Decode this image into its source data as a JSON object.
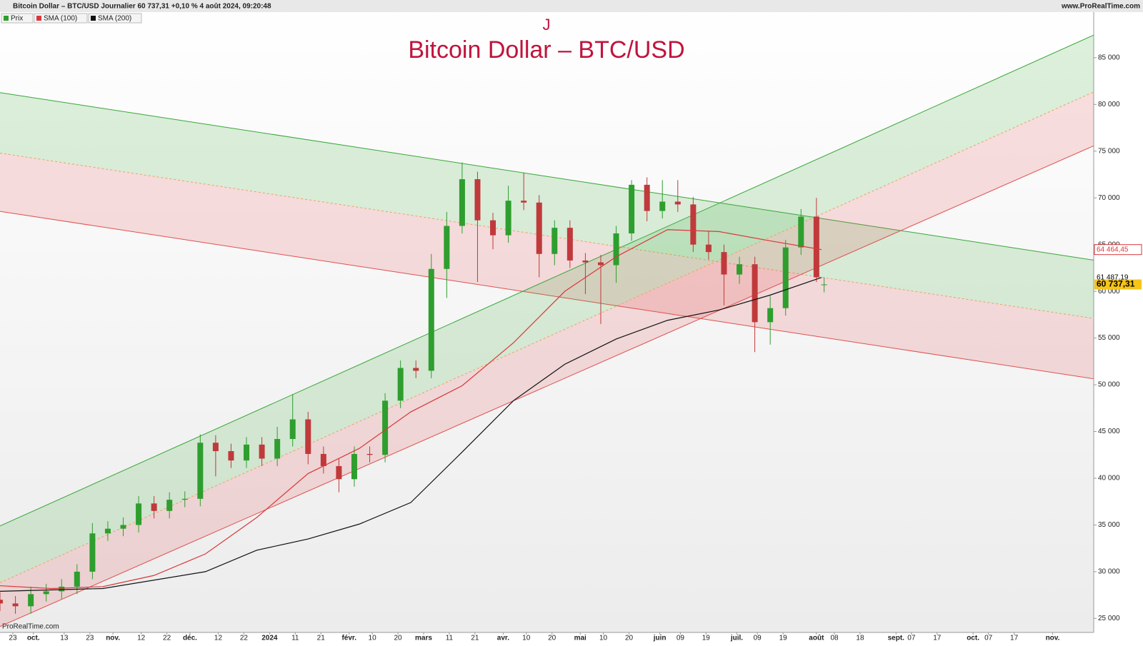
{
  "header": {
    "text": "Bitcoin Dollar – BTC/USD Journalier 60 737,31 +0,10 % 4 août 2024, 09:20:48",
    "site": "www.ProRealTime.com"
  },
  "footer": "ProRealTime.com",
  "chart_data": {
    "type": "candlestick",
    "supertitle": "J",
    "title": "Bitcoin Dollar – BTC/USD",
    "xlim": [
      0,
      426
    ],
    "ylim": [
      23500,
      89800
    ],
    "yticks": [
      {
        "value": 25000,
        "label": "25 000"
      },
      {
        "value": 30000,
        "label": "30 000"
      },
      {
        "value": 35000,
        "label": "35 000"
      },
      {
        "value": 40000,
        "label": "40 000"
      },
      {
        "value": 45000,
        "label": "45 000"
      },
      {
        "value": 50000,
        "label": "50 000"
      },
      {
        "value": 55000,
        "label": "55 000"
      },
      {
        "value": 60000,
        "label": "60 000"
      },
      {
        "value": 65000,
        "label": "65 000"
      },
      {
        "value": 70000,
        "label": "70 000"
      },
      {
        "value": 75000,
        "label": "75 000"
      },
      {
        "value": 80000,
        "label": "80 000"
      },
      {
        "value": 85000,
        "label": "85 000"
      }
    ],
    "xticks": [
      {
        "value": 5,
        "label": "23"
      },
      {
        "value": 13,
        "label": "oct."
      },
      {
        "value": 25,
        "label": "13"
      },
      {
        "value": 35,
        "label": "23"
      },
      {
        "value": 44,
        "label": "nov."
      },
      {
        "value": 55,
        "label": "12"
      },
      {
        "value": 65,
        "label": "22"
      },
      {
        "value": 74,
        "label": "déc."
      },
      {
        "value": 85,
        "label": "12"
      },
      {
        "value": 95,
        "label": "22"
      },
      {
        "value": 105,
        "label": "2024"
      },
      {
        "value": 115,
        "label": "11"
      },
      {
        "value": 125,
        "label": "21"
      },
      {
        "value": 136,
        "label": "févr."
      },
      {
        "value": 145,
        "label": "10"
      },
      {
        "value": 155,
        "label": "20"
      },
      {
        "value": 165,
        "label": "mars"
      },
      {
        "value": 175,
        "label": "11"
      },
      {
        "value": 185,
        "label": "21"
      },
      {
        "value": 196,
        "label": "avr."
      },
      {
        "value": 205,
        "label": "10"
      },
      {
        "value": 215,
        "label": "20"
      },
      {
        "value": 226,
        "label": "mai"
      },
      {
        "value": 235,
        "label": "10"
      },
      {
        "value": 245,
        "label": "20"
      },
      {
        "value": 257,
        "label": "juin"
      },
      {
        "value": 265,
        "label": "09"
      },
      {
        "value": 275,
        "label": "19"
      },
      {
        "value": 287,
        "label": "juil."
      },
      {
        "value": 295,
        "label": "09"
      },
      {
        "value": 305,
        "label": "19"
      },
      {
        "value": 318,
        "label": "août"
      },
      {
        "value": 325,
        "label": "08"
      },
      {
        "value": 335,
        "label": "18"
      },
      {
        "value": 349,
        "label": "sept."
      },
      {
        "value": 355,
        "label": "07"
      },
      {
        "value": 365,
        "label": "17"
      },
      {
        "value": 379,
        "label": "oct."
      },
      {
        "value": 385,
        "label": "07"
      },
      {
        "value": 395,
        "label": "17"
      },
      {
        "value": 410,
        "label": "nov."
      }
    ],
    "candles": {
      "name": "Prix",
      "up_color": "#2e9e2e",
      "down_color": "#c0393b",
      "x": [
        0,
        6,
        12,
        18,
        24,
        30,
        36,
        42,
        48,
        54,
        60,
        66,
        72,
        78,
        84,
        90,
        96,
        102,
        108,
        114,
        120,
        126,
        132,
        138,
        144,
        150,
        156,
        162,
        168,
        174,
        180,
        186,
        192,
        198,
        204,
        210,
        216,
        222,
        228,
        234,
        240,
        246,
        252,
        258,
        264,
        270,
        276,
        282,
        288,
        294,
        300,
        306,
        312,
        318,
        321
      ],
      "open": [
        27000,
        26600,
        26300,
        27600,
        27900,
        28400,
        30000,
        34100,
        34600,
        35000,
        37300,
        36500,
        37700,
        37800,
        43800,
        42900,
        41900,
        43600,
        42100,
        44200,
        46300,
        42600,
        41300,
        39900,
        42600,
        42500,
        48300,
        51800,
        51500,
        62400,
        67000,
        72000,
        67600,
        66000,
        69700,
        69500,
        64000,
        66800,
        63300,
        63100,
        62800,
        66200,
        71400,
        68600,
        69600,
        69300,
        65000,
        64200,
        61800,
        62900,
        56700,
        58200,
        64700,
        68000,
        60700
      ],
      "high": [
        27800,
        27400,
        28400,
        28700,
        29200,
        30800,
        35200,
        35400,
        35800,
        38100,
        38100,
        38500,
        38600,
        44700,
        44600,
        43700,
        44400,
        44400,
        45500,
        49000,
        47100,
        43400,
        42100,
        43400,
        43400,
        49100,
        52600,
        52600,
        64000,
        68500,
        73800,
        72800,
        68400,
        71300,
        72700,
        70300,
        67600,
        67600,
        64100,
        63900,
        67000,
        71900,
        72200,
        71900,
        71900,
        70100,
        66500,
        65000,
        63700,
        63700,
        59500,
        65500,
        68800,
        70000,
        61500
      ],
      "low": [
        25800,
        25500,
        25500,
        26800,
        27100,
        27600,
        29200,
        33300,
        33800,
        34200,
        35700,
        35700,
        36900,
        37000,
        40200,
        41100,
        41100,
        41300,
        41300,
        43400,
        41500,
        40500,
        38500,
        39100,
        41700,
        41700,
        47500,
        50700,
        50700,
        59300,
        66200,
        61000,
        64500,
        65200,
        68700,
        61500,
        62800,
        62500,
        59700,
        56500,
        60900,
        65400,
        67500,
        67800,
        68500,
        64200,
        63400,
        58500,
        60800,
        53500,
        54300,
        57400,
        63900,
        61000,
        59900
      ],
      "close": [
        26600,
        26300,
        27600,
        27900,
        28400,
        30000,
        34100,
        34600,
        35000,
        37300,
        36500,
        37700,
        37800,
        43800,
        42900,
        41900,
        43600,
        42100,
        44200,
        46300,
        42600,
        41300,
        39900,
        42600,
        42500,
        48300,
        51800,
        51500,
        62400,
        67000,
        72000,
        67600,
        66000,
        69700,
        69500,
        64000,
        66800,
        63300,
        63100,
        62800,
        66200,
        71400,
        68600,
        69600,
        69300,
        65000,
        64200,
        61800,
        62900,
        56700,
        58200,
        64700,
        68000,
        61500,
        60737.31
      ],
      "tag": {
        "value": 60737.31,
        "label": "60 737,31"
      },
      "tag_color": "#f5c518"
    },
    "series": [
      {
        "name": "SMA (100)",
        "color": "#d9383a",
        "x": [
          0,
          20,
          40,
          60,
          80,
          100,
          120,
          140,
          160,
          180,
          200,
          220,
          240,
          260,
          280,
          300,
          320
        ],
        "values": [
          28500,
          28200,
          28400,
          29600,
          31900,
          35800,
          40500,
          43200,
          47100,
          49900,
          54500,
          60000,
          63700,
          66600,
          66400,
          65400,
          64464.45
        ],
        "tag": {
          "value": 64464.45,
          "label": "64 464,45"
        }
      },
      {
        "name": "SMA (200)",
        "color": "#111111",
        "x": [
          0,
          40,
          80,
          100,
          120,
          140,
          160,
          180,
          200,
          220,
          240,
          260,
          280,
          300,
          320
        ],
        "values": [
          27900,
          28200,
          30000,
          32300,
          33500,
          35100,
          37400,
          42800,
          48300,
          52200,
          54900,
          56900,
          58000,
          59600,
          61487.19
        ],
        "tag": {
          "value": 61487.19,
          "label": "61 487,19"
        }
      }
    ],
    "channel_x": [
      0,
      426
    ],
    "channels": [
      {
        "upper": [
          81260,
          63340
        ],
        "mid": [
          74790,
          57100
        ],
        "lower": [
          68560,
          50640
        ]
      },
      {
        "upper": [
          34900,
          87420
        ],
        "mid": [
          28820,
          81340
        ],
        "lower": [
          24140,
          75570
        ]
      }
    ]
  }
}
